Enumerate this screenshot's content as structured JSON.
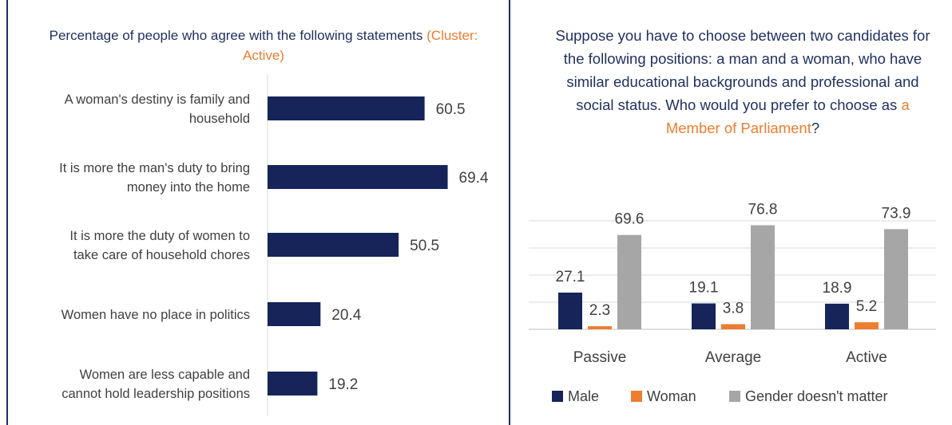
{
  "colors": {
    "navy": "#16245a",
    "orange": "#ed7d31",
    "gray": "#a6a6a6",
    "title": "#1f2f5f",
    "text": "#404040"
  },
  "left_title": {
    "main": "Percentage of people who agree with the following statements",
    "highlight": "(Cluster: Active)"
  },
  "right_title": {
    "main": "Suppose you have to choose between two candidates for the following positions: a man and a woman, who have similar educational backgrounds and professional and social status. Who would you prefer to choose as",
    "highlight": "a Member of Parliament",
    "end": "?"
  },
  "chart_data": [
    {
      "type": "bar",
      "orientation": "horizontal",
      "categories": [
        [
          "A woman's destiny is family and",
          "household"
        ],
        [
          "It is more the man's duty to bring",
          "money into the home"
        ],
        [
          "It is more the duty of women to",
          "take care of household chores"
        ],
        [
          "Women have no place in politics"
        ],
        [
          "Women are less capable and",
          "cannot hold leadership positions"
        ]
      ],
      "values": [
        60.5,
        69.4,
        50.5,
        20.4,
        19.2
      ],
      "xlim": [
        0,
        100
      ],
      "grid": false,
      "legend": "none"
    },
    {
      "type": "bar",
      "orientation": "vertical",
      "categories": [
        "Passive",
        "Average",
        "Active"
      ],
      "series": [
        {
          "name": "Male",
          "values": [
            27.1,
            19.1,
            18.9
          ]
        },
        {
          "name": "Woman",
          "values": [
            2.3,
            3.8,
            5.2
          ]
        },
        {
          "name": "Gender doesn't matter",
          "values": [
            69.6,
            76.8,
            73.9
          ]
        }
      ],
      "ylim": [
        0,
        80
      ],
      "grid": true,
      "legend": "bottom"
    }
  ]
}
